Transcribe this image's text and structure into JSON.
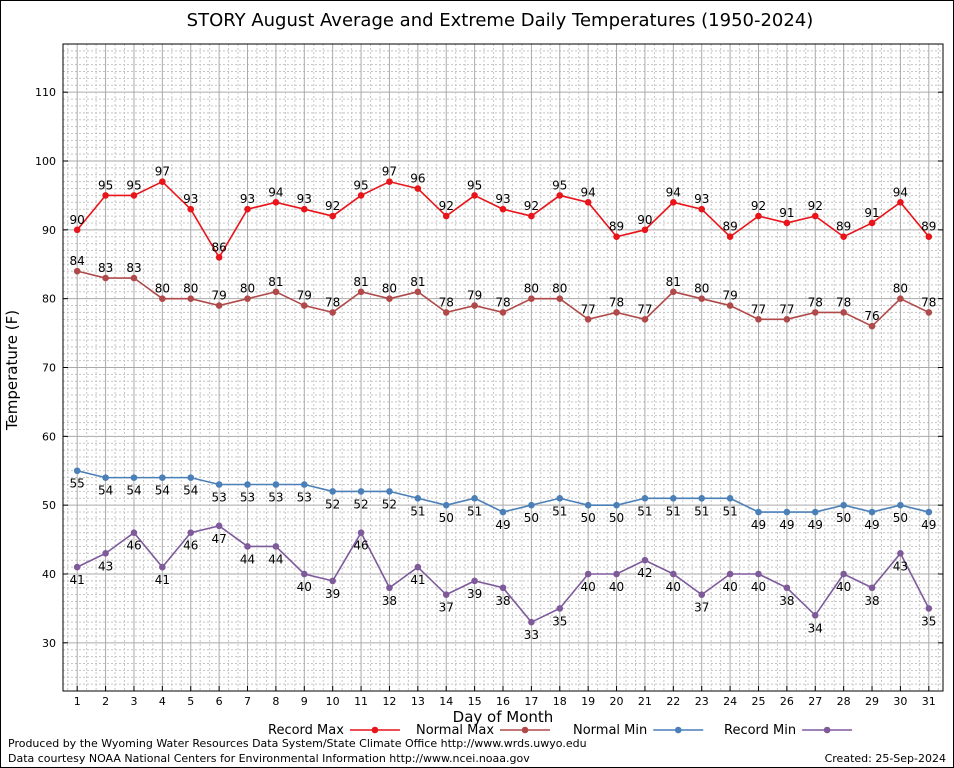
{
  "chart_data": {
    "type": "line",
    "title": "STORY August Average and Extreme Daily Temperatures (1950-2024)",
    "xlabel": "Day of Month",
    "ylabel": "Temperature (F)",
    "x": [
      1,
      2,
      3,
      4,
      5,
      6,
      7,
      8,
      9,
      10,
      11,
      12,
      13,
      14,
      15,
      16,
      17,
      18,
      19,
      20,
      21,
      22,
      23,
      24,
      25,
      26,
      27,
      28,
      29,
      30,
      31
    ],
    "xlim": [
      0.5,
      31.5
    ],
    "ylim": [
      23,
      117
    ],
    "yticks": [
      30,
      40,
      50,
      60,
      70,
      80,
      90,
      100,
      110
    ],
    "grid": true,
    "legend_position": "bottom",
    "series": [
      {
        "name": "Record Max",
        "color": "#e8141a",
        "values": [
          90,
          95,
          95,
          97,
          93,
          86,
          93,
          94,
          93,
          92,
          95,
          97,
          96,
          92,
          95,
          93,
          92,
          95,
          94,
          89,
          90,
          94,
          93,
          89,
          92,
          91,
          92,
          89,
          91,
          94,
          89
        ]
      },
      {
        "name": "Normal Max",
        "color": "#b04a4a",
        "values": [
          84,
          83,
          83,
          80,
          80,
          79,
          80,
          81,
          79,
          78,
          81,
          80,
          81,
          78,
          79,
          78,
          80,
          80,
          77,
          78,
          77,
          81,
          80,
          79,
          77,
          77,
          78,
          78,
          76,
          80,
          78
        ]
      },
      {
        "name": "Normal Min",
        "color": "#4a7fb8",
        "values": [
          55,
          54,
          54,
          54,
          54,
          53,
          53,
          53,
          53,
          52,
          52,
          52,
          51,
          50,
          51,
          49,
          50,
          51,
          50,
          50,
          51,
          51,
          51,
          51,
          49,
          49,
          49,
          50,
          49,
          50,
          49
        ]
      },
      {
        "name": "Record Min",
        "color": "#7e5a9b",
        "values": [
          41,
          43,
          46,
          41,
          46,
          47,
          44,
          44,
          40,
          39,
          46,
          38,
          41,
          37,
          39,
          38,
          33,
          35,
          40,
          40,
          42,
          40,
          37,
          40,
          40,
          38,
          34,
          40,
          38,
          43,
          35
        ]
      }
    ]
  },
  "footer": {
    "produced_by": "Produced by the Wyoming Water Resources Data System/State Climate Office http://www.wrds.uwyo.edu",
    "courtesy": "Data courtesy NOAA National Centers for Environmental Information http://www.ncei.noaa.gov",
    "created": "Created:  25-Sep-2024"
  }
}
